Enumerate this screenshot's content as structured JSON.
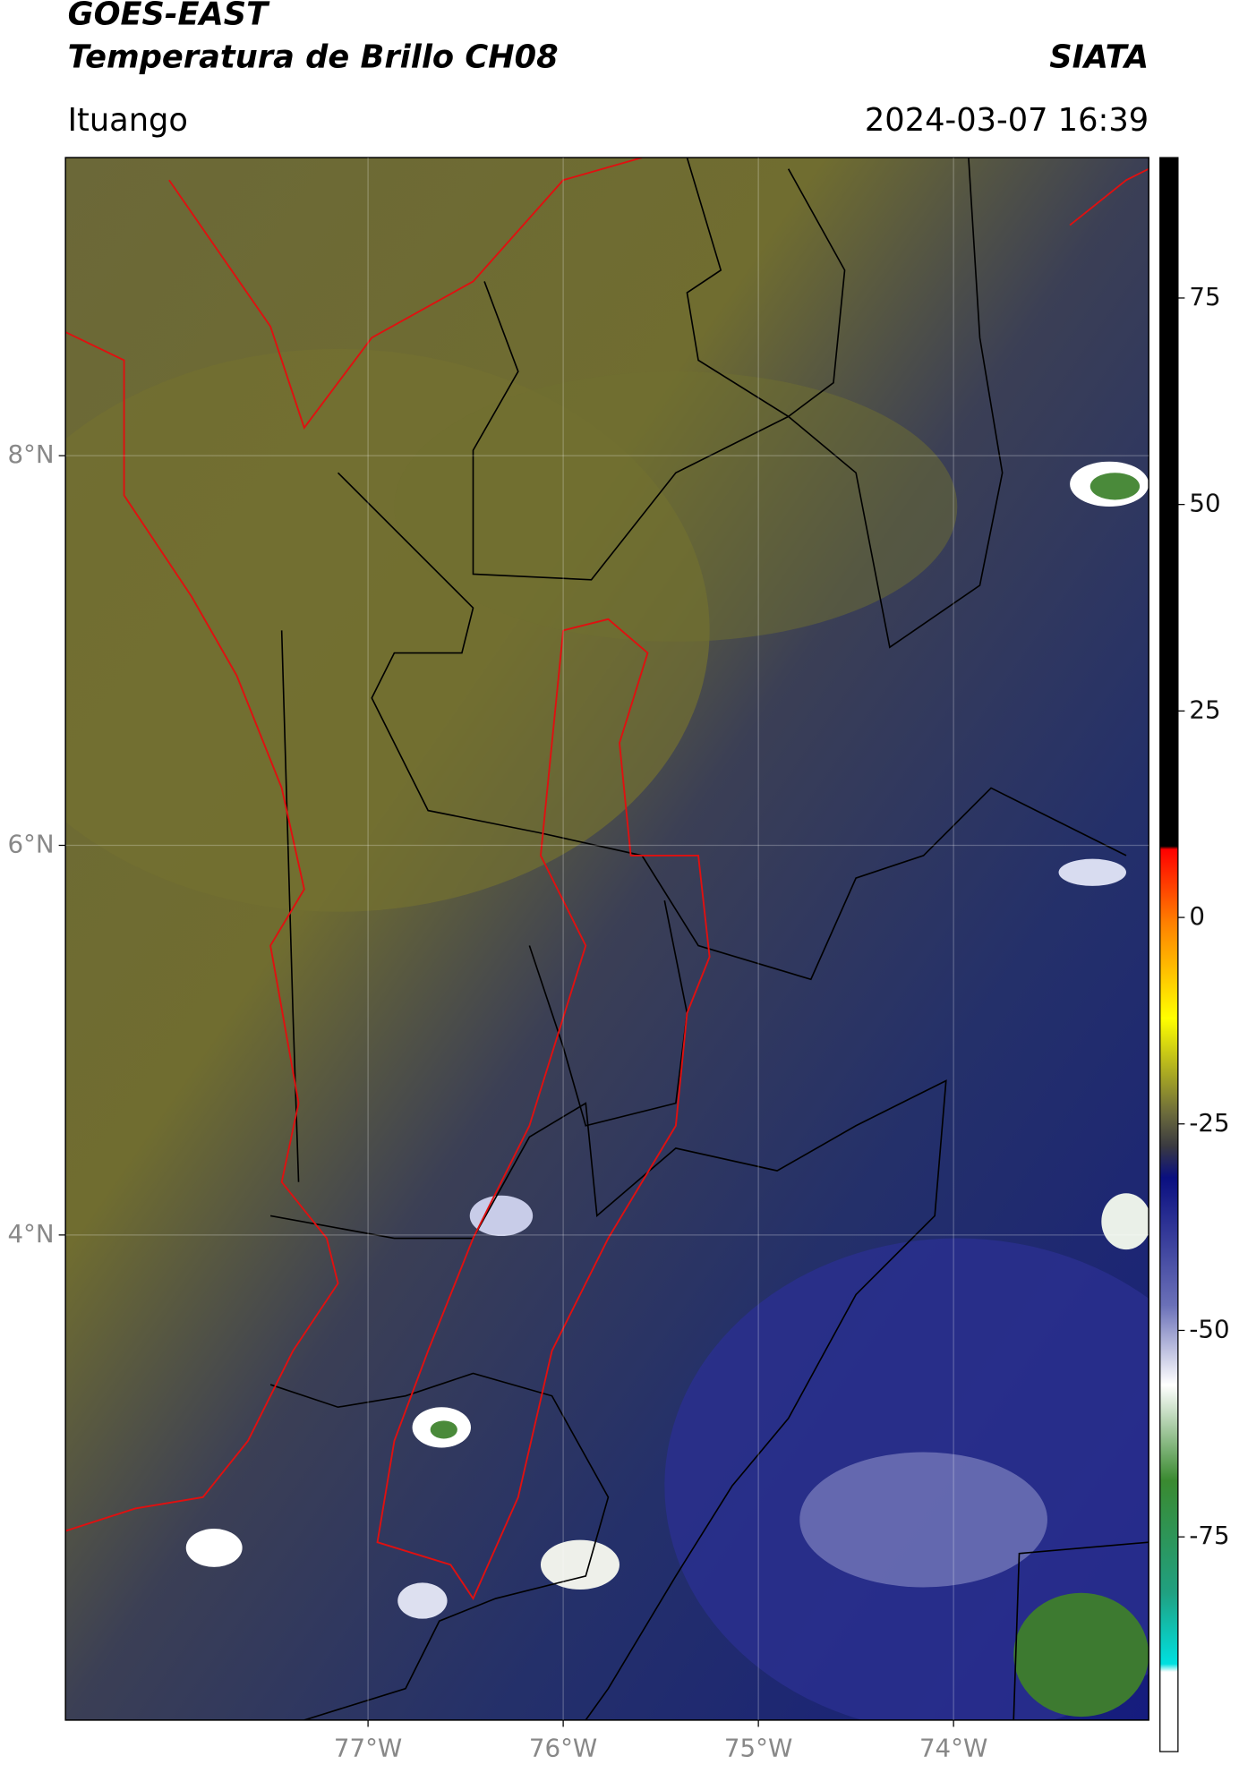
{
  "header": {
    "title": "GOES-EAST",
    "subtitle": "Temperatura de Brillo CH08",
    "source": "SIATA",
    "region": "Ituango",
    "timestamp": "2024-03-07 16:39"
  },
  "map": {
    "xlim": [
      -78.55,
      -73.0
    ],
    "ylim": [
      1.51,
      9.53
    ],
    "xticks": [
      {
        "value": -77,
        "label": "77°W"
      },
      {
        "value": -76,
        "label": "76°W"
      },
      {
        "value": -75,
        "label": "75°W"
      },
      {
        "value": -74,
        "label": "74°W"
      }
    ],
    "yticks": [
      {
        "value": 8,
        "label": "8°N"
      },
      {
        "value": 6,
        "label": "6°N"
      },
      {
        "value": 4,
        "label": "4°N"
      }
    ]
  },
  "colorbar": {
    "lim": [
      -101,
      92
    ],
    "ticks": [
      75,
      50,
      25,
      0,
      -25,
      -50,
      -75
    ]
  }
}
